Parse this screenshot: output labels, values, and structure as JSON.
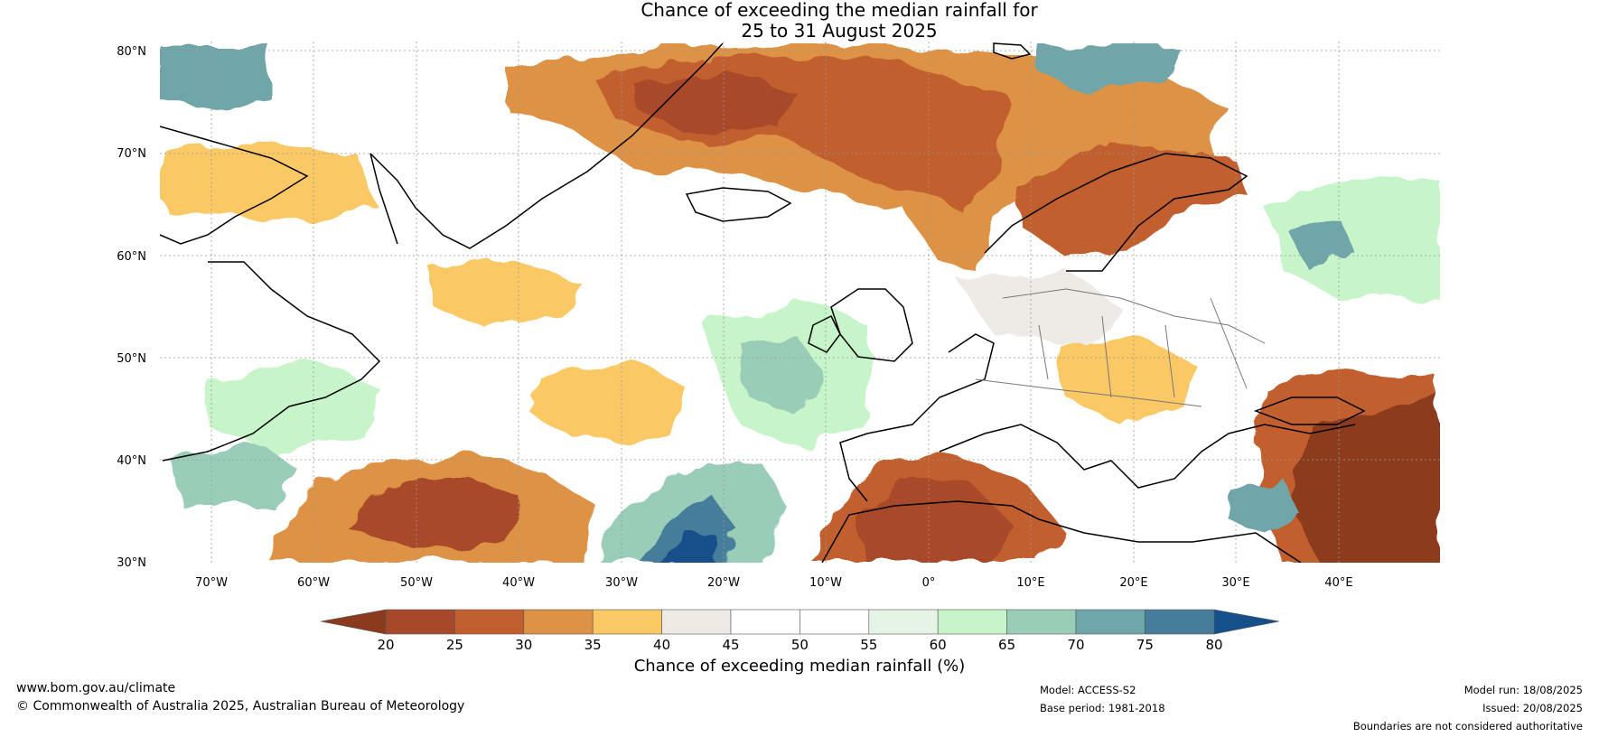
{
  "title": {
    "line1": "Chance of exceeding the median rainfall for",
    "line2": "25 to 31 August 2025"
  },
  "map": {
    "lat_labels": [
      "80°N",
      "70°N",
      "60°N",
      "50°N",
      "40°N",
      "30°N"
    ],
    "lon_labels": [
      "70°W",
      "60°W",
      "50°W",
      "40°W",
      "30°W",
      "20°W",
      "10°W",
      "0°",
      "10°E",
      "20°E",
      "30°E",
      "40°E"
    ],
    "lon_range": [
      -75,
      50
    ],
    "lat_range": [
      30,
      81
    ]
  },
  "colorbar": {
    "title": "Chance of exceeding median rainfall (%)",
    "tick_labels": [
      "20",
      "25",
      "30",
      "35",
      "40",
      "45",
      "50",
      "55",
      "60",
      "65",
      "70",
      "75",
      "80"
    ],
    "low_color": "#8c3a1e",
    "high_color": "#16508a",
    "colors": [
      "#a8482a",
      "#c25f2e",
      "#dd9245",
      "#fbc866",
      "#eeeae6",
      "#ffffff",
      "#ffffff",
      "#e6f4e6",
      "#c7f5c9",
      "#9acdb7",
      "#6fa6a9",
      "#457d9a"
    ]
  },
  "footer": {
    "website": "www.bom.gov.au/climate",
    "copyright": "© Commonwealth of Australia 2025, Australian Bureau of Meteorology",
    "model": "Model: ACCESS-S2",
    "base_period": "Base period: 1981-2018",
    "model_run": "Model run: 18/08/2025",
    "issued": "Issued: 20/08/2025",
    "disclaimer": "Boundaries are not considered authoritative"
  }
}
